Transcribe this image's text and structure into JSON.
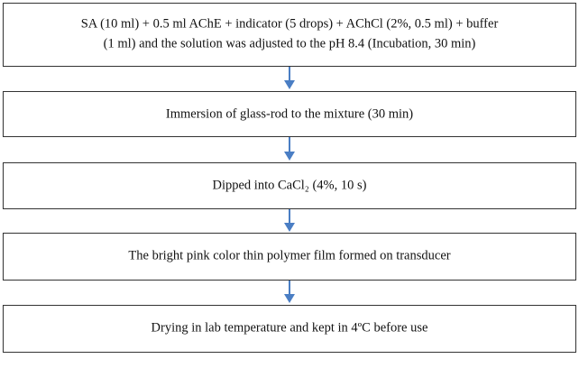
{
  "nodes": [
    {
      "lines": [
        "SA (10 ml) + 0.5 ml AChE + indicator (5 drops) + AChCl (2%, 0.5 ml) + buffer",
        "(1 ml) and the solution was adjusted to the pH 8.4 (Incubation, 30 min)"
      ]
    },
    {
      "lines": [
        "Immersion of glass-rod to the mixture (30 min)"
      ]
    },
    {
      "lines": [
        "Dipped into CaCl₂ (4%, 10 s)"
      ]
    },
    {
      "lines": [
        "The bright pink color thin polymer film formed on transducer"
      ]
    },
    {
      "lines": [
        "Drying in lab temperature and kept in 4ºC before use"
      ]
    }
  ]
}
